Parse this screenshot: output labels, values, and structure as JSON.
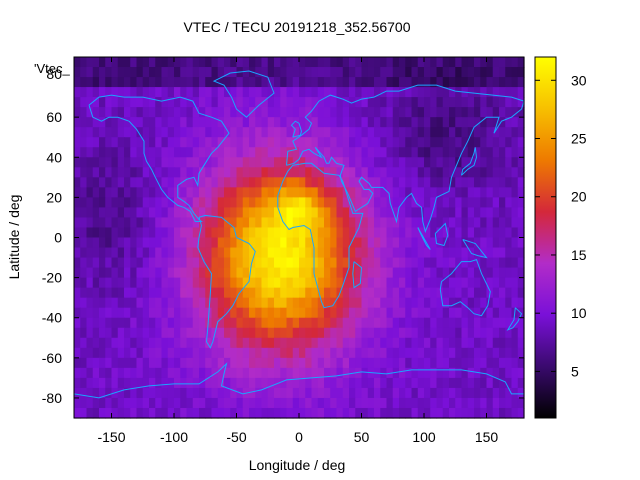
{
  "chart_data": {
    "type": "heatmap",
    "title": "VTEC / TECU 20191218_352.56700",
    "xlabel": "Longitude / deg",
    "ylabel": "Latitude / deg",
    "xlim": [
      -180,
      180
    ],
    "ylim": [
      -90,
      90
    ],
    "xticks": [
      "-150",
      "-100",
      "-50",
      "0",
      "50",
      "100",
      "150"
    ],
    "yticks": [
      "60",
      "40",
      "20",
      "0",
      "-20",
      "-40",
      "-60",
      "-80"
    ],
    "y_top_tick_partial": "80",
    "corner_label": "'Vtec_",
    "colorbar": {
      "range": [
        1,
        32
      ],
      "ticks": [
        "30",
        "25",
        "20",
        "15",
        "10",
        "5"
      ],
      "palette": [
        "#000000",
        "#3a0a6e",
        "#7a10d8",
        "#b22cc8",
        "#d4283a",
        "#ee7a00",
        "#f7c000",
        "#ffff00"
      ]
    },
    "field_model": {
      "background_tecu": 9,
      "peak_tecu": 31,
      "peak_lon": -15,
      "peak_lat": -10,
      "secondary_peak": {
        "lon": 0,
        "lat": 15,
        "tecu": 27
      },
      "polar_low_lon": 115,
      "polar_low_lat": 50
    },
    "grid": false,
    "legend": "none"
  }
}
